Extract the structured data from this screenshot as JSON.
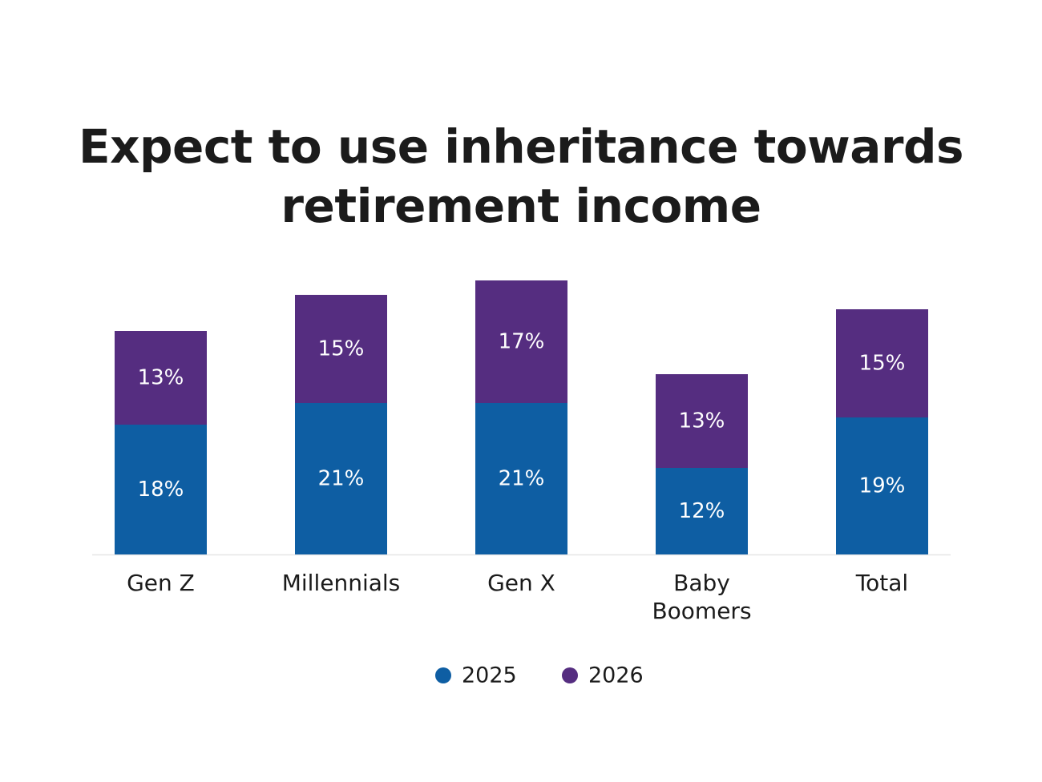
{
  "title_lines": [
    "Expect to use inheritance towards",
    "retirement income"
  ],
  "chart_data": {
    "type": "bar",
    "stacked": true,
    "title": "Expect to use inheritance towards retirement income",
    "categories": [
      [
        "Gen Z"
      ],
      [
        "Millennials"
      ],
      [
        "Gen X"
      ],
      [
        "Baby",
        "Boomers"
      ],
      [
        "Total"
      ]
    ],
    "series": [
      {
        "name": "2025",
        "color": "#0e5ea3",
        "values": [
          18,
          21,
          21,
          12,
          19
        ],
        "labels": [
          "18%",
          "21%",
          "21%",
          "12%",
          "19%"
        ]
      },
      {
        "name": "2026",
        "color": "#552d80",
        "values": [
          13,
          15,
          17,
          13,
          15
        ],
        "labels": [
          "13%",
          "15%",
          "17%",
          "13%",
          "15%"
        ]
      }
    ],
    "value_axis": {
      "min": 0,
      "max": 38,
      "visible": false
    },
    "grid": false,
    "legend": "bottom-center"
  }
}
